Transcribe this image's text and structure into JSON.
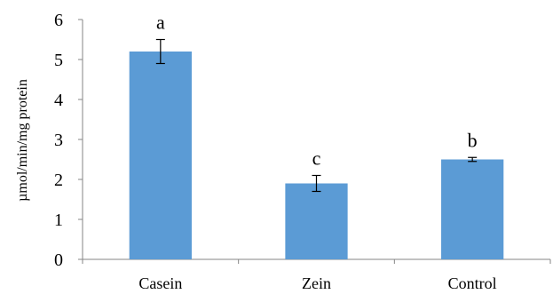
{
  "chart_data": {
    "type": "bar",
    "title": "",
    "ylabel": "µmol/min/mg protein",
    "xlabel": "",
    "categories": [
      "Casein",
      "Zein",
      "Control"
    ],
    "values": [
      5.2,
      1.9,
      2.5
    ],
    "errors": [
      0.3,
      0.2,
      0.05
    ],
    "significance_labels": [
      "a",
      "c",
      "b"
    ],
    "ylim": [
      0,
      6
    ],
    "yticks": [
      "0",
      "1",
      "2",
      "3",
      "4",
      "5",
      "6"
    ],
    "grid": false,
    "legend": "none",
    "colors": {
      "bar": "#5B9BD5",
      "axis": "#868686",
      "error": "#000000"
    }
  }
}
